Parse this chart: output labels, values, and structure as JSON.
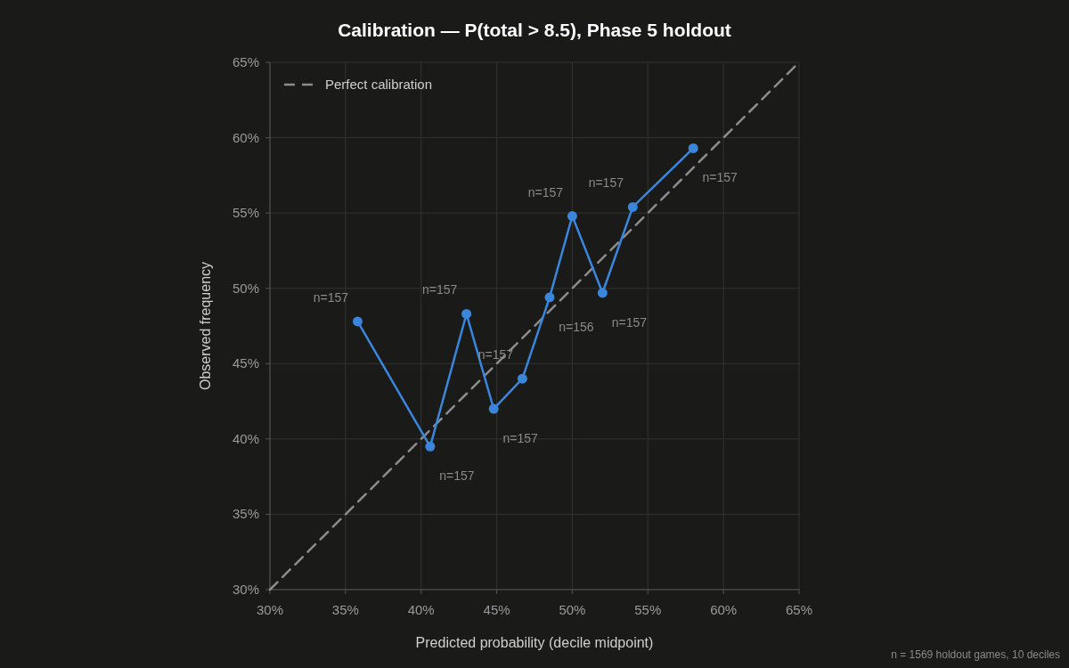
{
  "chart_data": {
    "type": "line",
    "title": "Calibration — P(total > 8.5), Phase 5 holdout",
    "xlabel": "Predicted probability (decile midpoint)",
    "ylabel": "Observed frequency",
    "xlim": [
      30,
      65
    ],
    "ylim": [
      30,
      65
    ],
    "xticks": [
      {
        "value": 30,
        "label": "30%"
      },
      {
        "value": 35,
        "label": "35%"
      },
      {
        "value": 40,
        "label": "40%"
      },
      {
        "value": 45,
        "label": "45%"
      },
      {
        "value": 50,
        "label": "50%"
      },
      {
        "value": 55,
        "label": "55%"
      },
      {
        "value": 60,
        "label": "60%"
      },
      {
        "value": 65,
        "label": "65%"
      }
    ],
    "yticks": [
      {
        "value": 30,
        "label": "30%"
      },
      {
        "value": 35,
        "label": "35%"
      },
      {
        "value": 40,
        "label": "40%"
      },
      {
        "value": 45,
        "label": "45%"
      },
      {
        "value": 50,
        "label": "50%"
      },
      {
        "value": 55,
        "label": "55%"
      },
      {
        "value": 60,
        "label": "60%"
      },
      {
        "value": 65,
        "label": "65%"
      }
    ],
    "grid": true,
    "legend": "top left",
    "series": [
      {
        "name": "Perfect calibration",
        "color": "#8c8c8c",
        "line_style": "dashed",
        "marker": "none",
        "x": [
          30,
          65
        ],
        "values": [
          30,
          65
        ]
      },
      {
        "color": "#3a86dc",
        "line_style": "solid",
        "marker": "circle",
        "x": [
          35.8,
          40.6,
          43.0,
          44.8,
          46.7,
          48.5,
          50.0,
          52.0,
          54.0,
          58.0
        ],
        "values": [
          47.8,
          39.5,
          48.3,
          42.0,
          44.0,
          49.4,
          54.8,
          49.7,
          55.4,
          59.3
        ]
      }
    ],
    "annotations": [
      {
        "text": "n=157",
        "x": 35.8,
        "y": 47.8
      },
      {
        "text": "n=157",
        "x": 40.6,
        "y": 39.5
      },
      {
        "text": "n=157",
        "x": 43.0,
        "y": 48.3
      },
      {
        "text": "n=157",
        "x": 44.8,
        "y": 42.0
      },
      {
        "text": "n=157",
        "x": 46.7,
        "y": 44.0
      },
      {
        "text": "n=156",
        "x": 48.5,
        "y": 49.4
      },
      {
        "text": "n=157",
        "x": 50.0,
        "y": 54.8
      },
      {
        "text": "n=157",
        "x": 52.0,
        "y": 49.7
      },
      {
        "text": "n=157",
        "x": 54.0,
        "y": 55.4
      },
      {
        "text": "n=157",
        "x": 58.0,
        "y": 59.3
      },
      "n = 1569 holdout games, 10 deciles"
    ]
  }
}
